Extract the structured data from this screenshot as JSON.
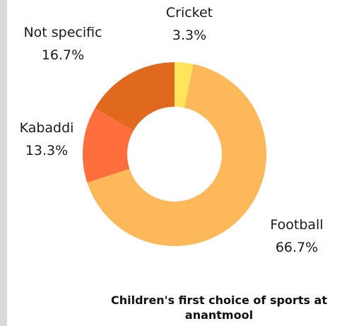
{
  "chart_data": {
    "type": "pie",
    "style": "donut",
    "title": "Children's first choice of sports at anantmool",
    "categories": [
      "Cricket",
      "Football",
      "Kabaddi",
      "Not specific"
    ],
    "values": [
      3.3,
      66.7,
      13.3,
      16.7
    ],
    "value_labels": [
      "3.3%",
      "66.7%",
      "13.3%",
      "16.7%"
    ],
    "colors": [
      "#FFE45C",
      "#FDB85A",
      "#FF6E3C",
      "#E0691E"
    ],
    "start_angle": "12 o'clock",
    "direction": "clockwise",
    "legend": "none"
  }
}
